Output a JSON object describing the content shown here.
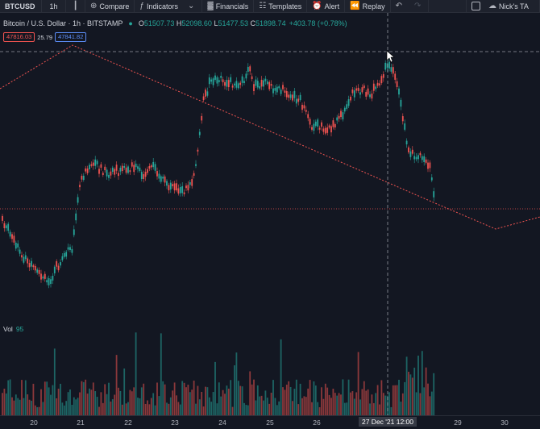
{
  "toolbar": {
    "symbol": "BTCUSD",
    "interval": "1h",
    "compare_label": "Compare",
    "indicators_label": "Indicators",
    "financials_label": "Financials",
    "templates_label": "Templates",
    "alert_label": "Alert",
    "replay_label": "Replay",
    "layout_name": "Nick's TA"
  },
  "legend": {
    "title": "Bitcoin / U.S. Dollar · 1h · BITSTAMP",
    "open_key": "O",
    "open": "51507.73",
    "high_key": "H",
    "high": "52098.60",
    "low_key": "L",
    "low": "51477.53",
    "close_key": "C",
    "close": "51898.74",
    "change": "+403.78 (+0.78%)",
    "bid": "47816.03",
    "spread": "25.79",
    "ask": "47841.82"
  },
  "volume": {
    "label": "Vol",
    "value": "95"
  },
  "xaxis": {
    "ticks": [
      {
        "label": "20",
        "pos": 42
      },
      {
        "label": "21",
        "pos": 100
      },
      {
        "label": "22",
        "pos": 159
      },
      {
        "label": "23",
        "pos": 217
      },
      {
        "label": "24",
        "pos": 276
      },
      {
        "label": "25",
        "pos": 335
      },
      {
        "label": "26",
        "pos": 393
      },
      {
        "label": "29",
        "pos": 568
      },
      {
        "label": "30",
        "pos": 626
      }
    ],
    "crosshair_label": "27 Dec '21   12:00"
  },
  "colors": {
    "up": "#26a69a",
    "down": "#ef5350",
    "background": "#131722",
    "trendline": "#ef5350"
  }
}
